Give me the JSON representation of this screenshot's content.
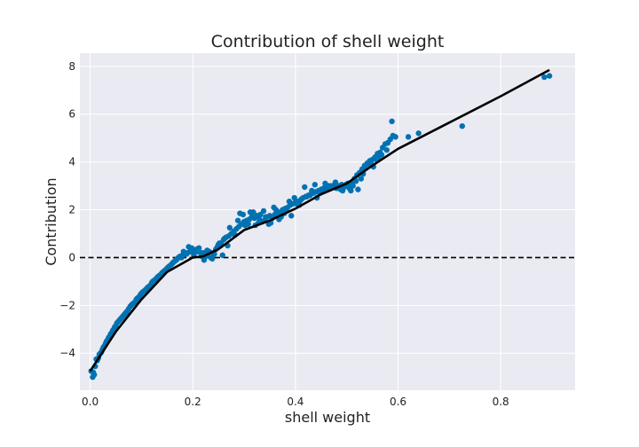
{
  "chart_data": {
    "type": "scatter",
    "title": "Contribution of shell weight",
    "xlabel": "shell weight",
    "ylabel": "Contribution",
    "xlim": [
      -0.02,
      0.945
    ],
    "ylim": [
      -5.55,
      8.55
    ],
    "xticks": [
      0.0,
      0.2,
      0.4,
      0.6,
      0.8
    ],
    "xtick_labels": [
      "0.0",
      "0.2",
      "0.4",
      "0.6",
      "0.8"
    ],
    "yticks": [
      -4,
      -2,
      0,
      2,
      4,
      6,
      8
    ],
    "ytick_labels": [
      "−4",
      "−2",
      "0",
      "2",
      "4",
      "6",
      "8"
    ],
    "grid": true,
    "background": "#eaeaf2",
    "point_color": "#0072b2",
    "line_color": "#000000",
    "reference_line": {
      "y": 0,
      "style": "dashed",
      "color": "#000000"
    },
    "series": [
      {
        "kind": "points",
        "x": [
          0.002,
          0.006,
          0.01,
          0.014,
          0.018,
          0.022,
          0.026,
          0.03,
          0.034,
          0.038,
          0.042,
          0.046,
          0.05,
          0.054,
          0.058,
          0.062,
          0.066,
          0.07,
          0.075,
          0.08,
          0.085,
          0.09,
          0.095,
          0.1,
          0.105,
          0.11,
          0.115,
          0.12,
          0.125,
          0.13,
          0.135,
          0.14,
          0.145,
          0.15,
          0.155,
          0.16,
          0.165,
          0.17,
          0.175,
          0.18,
          0.185,
          0.19,
          0.195,
          0.2,
          0.205,
          0.21,
          0.215,
          0.22,
          0.225,
          0.23,
          0.235,
          0.24,
          0.245,
          0.25,
          0.255,
          0.26,
          0.265,
          0.27,
          0.275,
          0.28,
          0.285,
          0.29,
          0.295,
          0.3,
          0.305,
          0.31,
          0.315,
          0.32,
          0.325,
          0.33,
          0.335,
          0.34,
          0.345,
          0.35,
          0.355,
          0.36,
          0.365,
          0.37,
          0.375,
          0.38,
          0.385,
          0.39,
          0.395,
          0.4,
          0.405,
          0.41,
          0.415,
          0.42,
          0.425,
          0.43,
          0.435,
          0.44,
          0.445,
          0.45,
          0.455,
          0.46,
          0.465,
          0.47,
          0.475,
          0.48,
          0.485,
          0.49,
          0.495,
          0.5,
          0.505,
          0.51,
          0.515,
          0.52,
          0.525,
          0.53,
          0.535,
          0.54,
          0.545,
          0.55,
          0.555,
          0.56,
          0.565,
          0.57,
          0.575,
          0.58,
          0.585,
          0.59,
          0.595,
          0.62,
          0.64,
          0.725,
          0.885,
          0.895,
          0.005,
          0.012,
          0.02,
          0.028,
          0.036,
          0.044,
          0.052,
          0.06,
          0.068,
          0.078,
          0.088,
          0.098,
          0.108,
          0.118,
          0.128,
          0.138,
          0.148,
          0.158,
          0.168,
          0.178,
          0.188,
          0.198,
          0.208,
          0.218,
          0.228,
          0.238,
          0.248,
          0.258,
          0.268,
          0.278,
          0.288,
          0.298,
          0.308,
          0.318,
          0.328,
          0.338,
          0.348,
          0.358,
          0.368,
          0.378,
          0.388,
          0.398,
          0.408,
          0.418,
          0.428,
          0.438,
          0.448,
          0.458,
          0.468,
          0.478,
          0.488,
          0.498,
          0.508,
          0.518,
          0.528,
          0.535,
          0.548,
          0.558,
          0.568,
          0.578,
          0.588,
          0.008,
          0.016,
          0.024,
          0.032,
          0.04,
          0.048,
          0.056,
          0.064,
          0.072,
          0.082,
          0.092,
          0.102,
          0.112,
          0.122,
          0.132,
          0.142,
          0.152,
          0.162,
          0.172,
          0.182,
          0.192,
          0.202,
          0.212,
          0.222,
          0.232,
          0.242,
          0.252,
          0.262,
          0.272,
          0.282,
          0.292,
          0.302,
          0.312,
          0.322,
          0.332,
          0.342,
          0.352,
          0.362,
          0.372,
          0.382,
          0.392,
          0.402,
          0.412,
          0.422,
          0.432,
          0.442,
          0.452,
          0.462,
          0.472,
          0.482,
          0.492,
          0.502,
          0.512,
          0.522,
          0.532,
          0.542,
          0.552,
          0.562
        ],
        "y": [
          -4.75,
          -4.8,
          -4.55,
          -4.3,
          -4.05,
          -3.95,
          -3.75,
          -3.6,
          -3.45,
          -3.3,
          -3.15,
          -3.0,
          -2.85,
          -2.7,
          -2.6,
          -2.5,
          -2.4,
          -2.3,
          -2.15,
          -2.0,
          -1.9,
          -1.75,
          -1.65,
          -1.5,
          -1.4,
          -1.3,
          -1.2,
          -1.05,
          -0.95,
          -0.85,
          -0.75,
          -0.65,
          -0.55,
          -0.45,
          -0.35,
          -0.25,
          -0.15,
          -0.05,
          0.05,
          0.1,
          0.15,
          0.2,
          0.25,
          0.3,
          0.3,
          0.25,
          0.2,
          0.2,
          0.05,
          0.1,
          0.0,
          0.2,
          0.35,
          0.55,
          0.6,
          0.75,
          0.85,
          0.9,
          1.0,
          1.1,
          1.2,
          1.3,
          1.4,
          1.5,
          1.55,
          1.6,
          1.7,
          1.65,
          1.75,
          1.6,
          1.5,
          1.55,
          1.7,
          1.75,
          1.65,
          1.8,
          1.85,
          1.9,
          2.0,
          2.05,
          2.1,
          2.2,
          2.25,
          2.3,
          2.35,
          2.4,
          2.5,
          2.55,
          2.6,
          2.65,
          2.7,
          2.75,
          2.8,
          2.85,
          2.9,
          2.95,
          3.0,
          3.0,
          2.95,
          2.9,
          3.0,
          3.05,
          2.95,
          3.0,
          2.9,
          3.1,
          3.3,
          3.45,
          3.55,
          3.7,
          3.85,
          3.95,
          4.05,
          4.1,
          4.2,
          4.35,
          4.4,
          4.6,
          4.75,
          4.8,
          4.95,
          5.1,
          5.05,
          5.05,
          5.2,
          5.5,
          7.55,
          7.6,
          -5.0,
          -4.25,
          -4.0,
          -3.7,
          -3.35,
          -3.05,
          -2.75,
          -2.55,
          -2.35,
          -2.05,
          -1.85,
          -1.55,
          -1.35,
          -1.15,
          -0.9,
          -0.7,
          -0.5,
          -0.3,
          -0.1,
          0.0,
          0.15,
          0.4,
          0.35,
          0.05,
          0.3,
          -0.05,
          0.45,
          0.1,
          0.5,
          1.0,
          1.55,
          1.8,
          1.4,
          1.9,
          1.45,
          1.95,
          1.4,
          2.1,
          1.6,
          1.85,
          2.35,
          2.5,
          2.2,
          2.95,
          2.6,
          3.05,
          2.7,
          3.1,
          2.9,
          3.15,
          2.85,
          3.05,
          2.8,
          3.2,
          3.3,
          3.8,
          3.9,
          4.1,
          4.3,
          4.5,
          5.7,
          -4.9,
          -4.2,
          -3.85,
          -3.5,
          -3.2,
          -2.9,
          -2.65,
          -2.45,
          -2.25,
          -1.95,
          -1.7,
          -1.45,
          -1.25,
          -1.0,
          -0.8,
          -0.6,
          -0.4,
          -0.2,
          0.0,
          0.25,
          0.45,
          0.1,
          0.4,
          -0.1,
          0.25,
          0.15,
          0.6,
          0.8,
          1.25,
          0.95,
          1.85,
          1.35,
          1.9,
          1.35,
          1.8,
          1.7,
          1.45,
          2.0,
          1.7,
          1.95,
          1.75,
          2.25,
          2.45,
          2.55,
          2.8,
          2.5,
          2.75,
          2.85,
          3.0,
          2.95,
          2.8,
          3.1,
          3.0,
          2.85,
          3.5,
          3.9,
          3.8,
          4.15
        ]
      },
      {
        "kind": "line",
        "x": [
          0.0,
          0.05,
          0.1,
          0.15,
          0.2,
          0.22,
          0.25,
          0.3,
          0.35,
          0.4,
          0.45,
          0.5,
          0.55,
          0.6,
          0.7,
          0.8,
          0.895
        ],
        "y": [
          -4.75,
          -3.1,
          -1.75,
          -0.6,
          0.0,
          0.05,
          0.35,
          1.15,
          1.55,
          2.05,
          2.65,
          3.1,
          3.85,
          4.55,
          5.65,
          6.75,
          7.85
        ]
      }
    ]
  }
}
